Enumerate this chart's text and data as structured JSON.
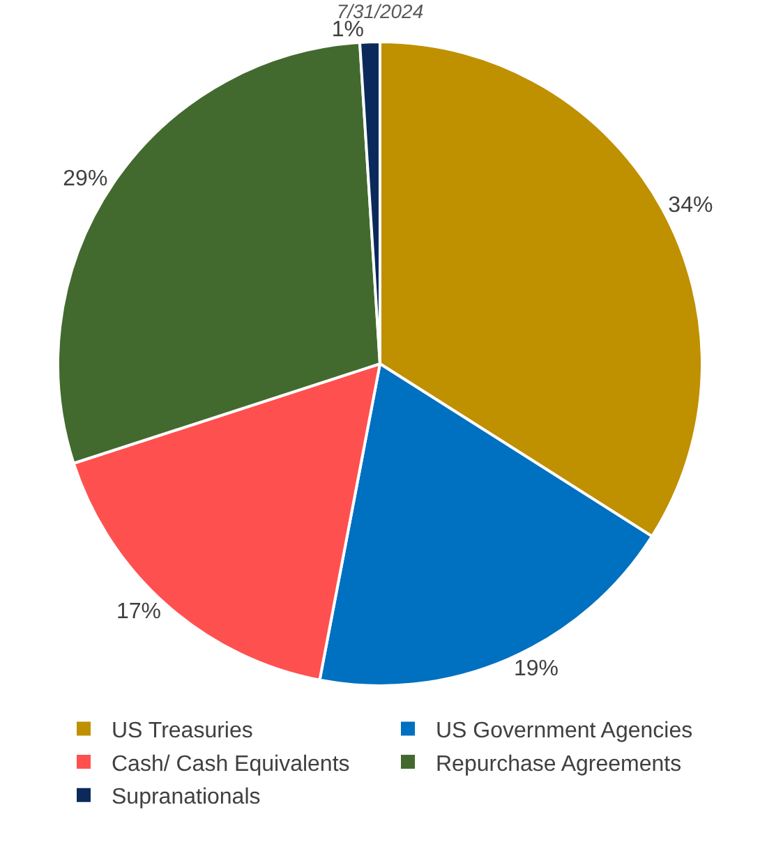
{
  "chart_data": {
    "type": "pie",
    "title": "7/31/2024",
    "categories": [
      "US Treasuries",
      "US Government Agencies",
      "Cash/ Cash Equivalents",
      "Repurchase Agreements",
      "Supranationals"
    ],
    "values": [
      34,
      19,
      17,
      29,
      1
    ],
    "colors": [
      "#bf9000",
      "#0070c0",
      "#ff5050",
      "#426a2e",
      "#0b2a5b"
    ],
    "value_labels": [
      "34%",
      "19%",
      "17%",
      "29%",
      "1%"
    ],
    "legend": "bottom"
  }
}
